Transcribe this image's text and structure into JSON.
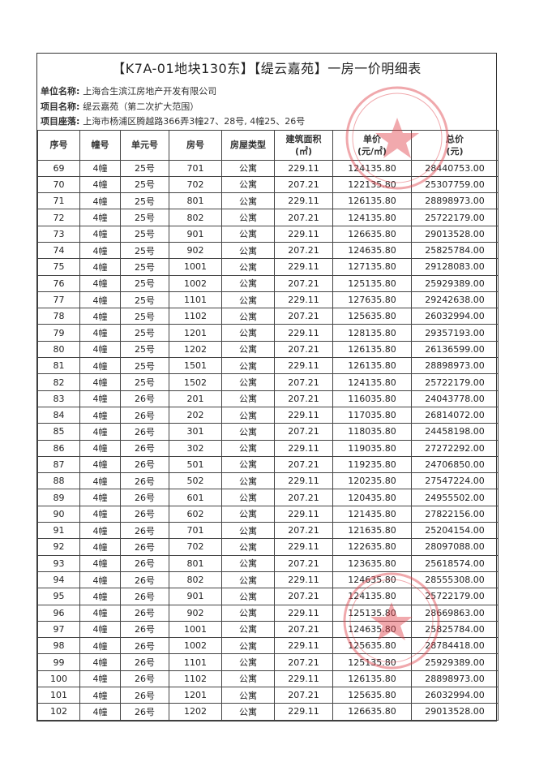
{
  "title": "【K7A-01地块130东】【缇云嘉苑】一房一价明细表",
  "info": [
    {
      "label": "单位名称:",
      "value": "上海合生滨江房地产开发有限公司"
    },
    {
      "label": "项目名称:",
      "value": "缇云嘉苑（第二次扩大范围）"
    },
    {
      "label": "项目座落:",
      "value": "上海市杨浦区腾越路366弄3幢27、28号, 4幢25、26号"
    }
  ],
  "columns": [
    "序号",
    "幢号",
    "单元号",
    "房号",
    "房屋类型",
    "建筑面积\n(㎡)",
    "单价\n(元/㎡)",
    "总价\n(元)"
  ],
  "stamp_color": "#e0404a",
  "rows": [
    [
      "69",
      "4幢",
      "25号",
      "701",
      "公寓",
      "229.11",
      "124135.80",
      "28440753.00"
    ],
    [
      "70",
      "4幢",
      "25号",
      "702",
      "公寓",
      "207.21",
      "122135.80",
      "25307759.00"
    ],
    [
      "71",
      "4幢",
      "25号",
      "801",
      "公寓",
      "229.11",
      "126135.80",
      "28898973.00"
    ],
    [
      "72",
      "4幢",
      "25号",
      "802",
      "公寓",
      "207.21",
      "124135.80",
      "25722179.00"
    ],
    [
      "73",
      "4幢",
      "25号",
      "901",
      "公寓",
      "229.11",
      "126635.80",
      "29013528.00"
    ],
    [
      "74",
      "4幢",
      "25号",
      "902",
      "公寓",
      "207.21",
      "124635.80",
      "25825784.00"
    ],
    [
      "75",
      "4幢",
      "25号",
      "1001",
      "公寓",
      "229.11",
      "127135.80",
      "29128083.00"
    ],
    [
      "76",
      "4幢",
      "25号",
      "1002",
      "公寓",
      "207.21",
      "125135.80",
      "25929389.00"
    ],
    [
      "77",
      "4幢",
      "25号",
      "1101",
      "公寓",
      "229.11",
      "127635.80",
      "29242638.00"
    ],
    [
      "78",
      "4幢",
      "25号",
      "1102",
      "公寓",
      "207.21",
      "125635.80",
      "26032994.00"
    ],
    [
      "79",
      "4幢",
      "25号",
      "1201",
      "公寓",
      "229.11",
      "128135.80",
      "29357193.00"
    ],
    [
      "80",
      "4幢",
      "25号",
      "1202",
      "公寓",
      "207.21",
      "126135.80",
      "26136599.00"
    ],
    [
      "81",
      "4幢",
      "25号",
      "1501",
      "公寓",
      "229.11",
      "126135.80",
      "28898973.00"
    ],
    [
      "82",
      "4幢",
      "25号",
      "1502",
      "公寓",
      "207.21",
      "124135.80",
      "25722179.00"
    ],
    [
      "83",
      "4幢",
      "26号",
      "201",
      "公寓",
      "207.21",
      "116035.80",
      "24043778.00"
    ],
    [
      "84",
      "4幢",
      "26号",
      "202",
      "公寓",
      "229.11",
      "117035.80",
      "26814072.00"
    ],
    [
      "85",
      "4幢",
      "26号",
      "301",
      "公寓",
      "207.21",
      "118035.80",
      "24458198.00"
    ],
    [
      "86",
      "4幢",
      "26号",
      "302",
      "公寓",
      "229.11",
      "119035.80",
      "27272292.00"
    ],
    [
      "87",
      "4幢",
      "26号",
      "501",
      "公寓",
      "207.21",
      "119235.80",
      "24706850.00"
    ],
    [
      "88",
      "4幢",
      "26号",
      "502",
      "公寓",
      "229.11",
      "120235.80",
      "27547224.00"
    ],
    [
      "89",
      "4幢",
      "26号",
      "601",
      "公寓",
      "207.21",
      "120435.80",
      "24955502.00"
    ],
    [
      "90",
      "4幢",
      "26号",
      "602",
      "公寓",
      "229.11",
      "121435.80",
      "27822156.00"
    ],
    [
      "91",
      "4幢",
      "26号",
      "701",
      "公寓",
      "207.21",
      "121635.80",
      "25204154.00"
    ],
    [
      "92",
      "4幢",
      "26号",
      "702",
      "公寓",
      "229.11",
      "122635.80",
      "28097088.00"
    ],
    [
      "93",
      "4幢",
      "26号",
      "801",
      "公寓",
      "207.21",
      "123635.80",
      "25618574.00"
    ],
    [
      "94",
      "4幢",
      "26号",
      "802",
      "公寓",
      "229.11",
      "124635.80",
      "28555308.00"
    ],
    [
      "95",
      "4幢",
      "26号",
      "901",
      "公寓",
      "207.21",
      "124135.80",
      "25722179.00"
    ],
    [
      "96",
      "4幢",
      "26号",
      "902",
      "公寓",
      "229.11",
      "125135.80",
      "28669863.00"
    ],
    [
      "97",
      "4幢",
      "26号",
      "1001",
      "公寓",
      "207.21",
      "124635.80",
      "25825784.00"
    ],
    [
      "98",
      "4幢",
      "26号",
      "1002",
      "公寓",
      "229.11",
      "125635.80",
      "28784418.00"
    ],
    [
      "99",
      "4幢",
      "26号",
      "1101",
      "公寓",
      "207.21",
      "125135.80",
      "25929389.00"
    ],
    [
      "100",
      "4幢",
      "26号",
      "1102",
      "公寓",
      "229.11",
      "126135.80",
      "28898973.00"
    ],
    [
      "101",
      "4幢",
      "26号",
      "1201",
      "公寓",
      "207.21",
      "125635.80",
      "26032994.00"
    ],
    [
      "102",
      "4幢",
      "26号",
      "1202",
      "公寓",
      "229.11",
      "126635.80",
      "29013528.00"
    ]
  ]
}
